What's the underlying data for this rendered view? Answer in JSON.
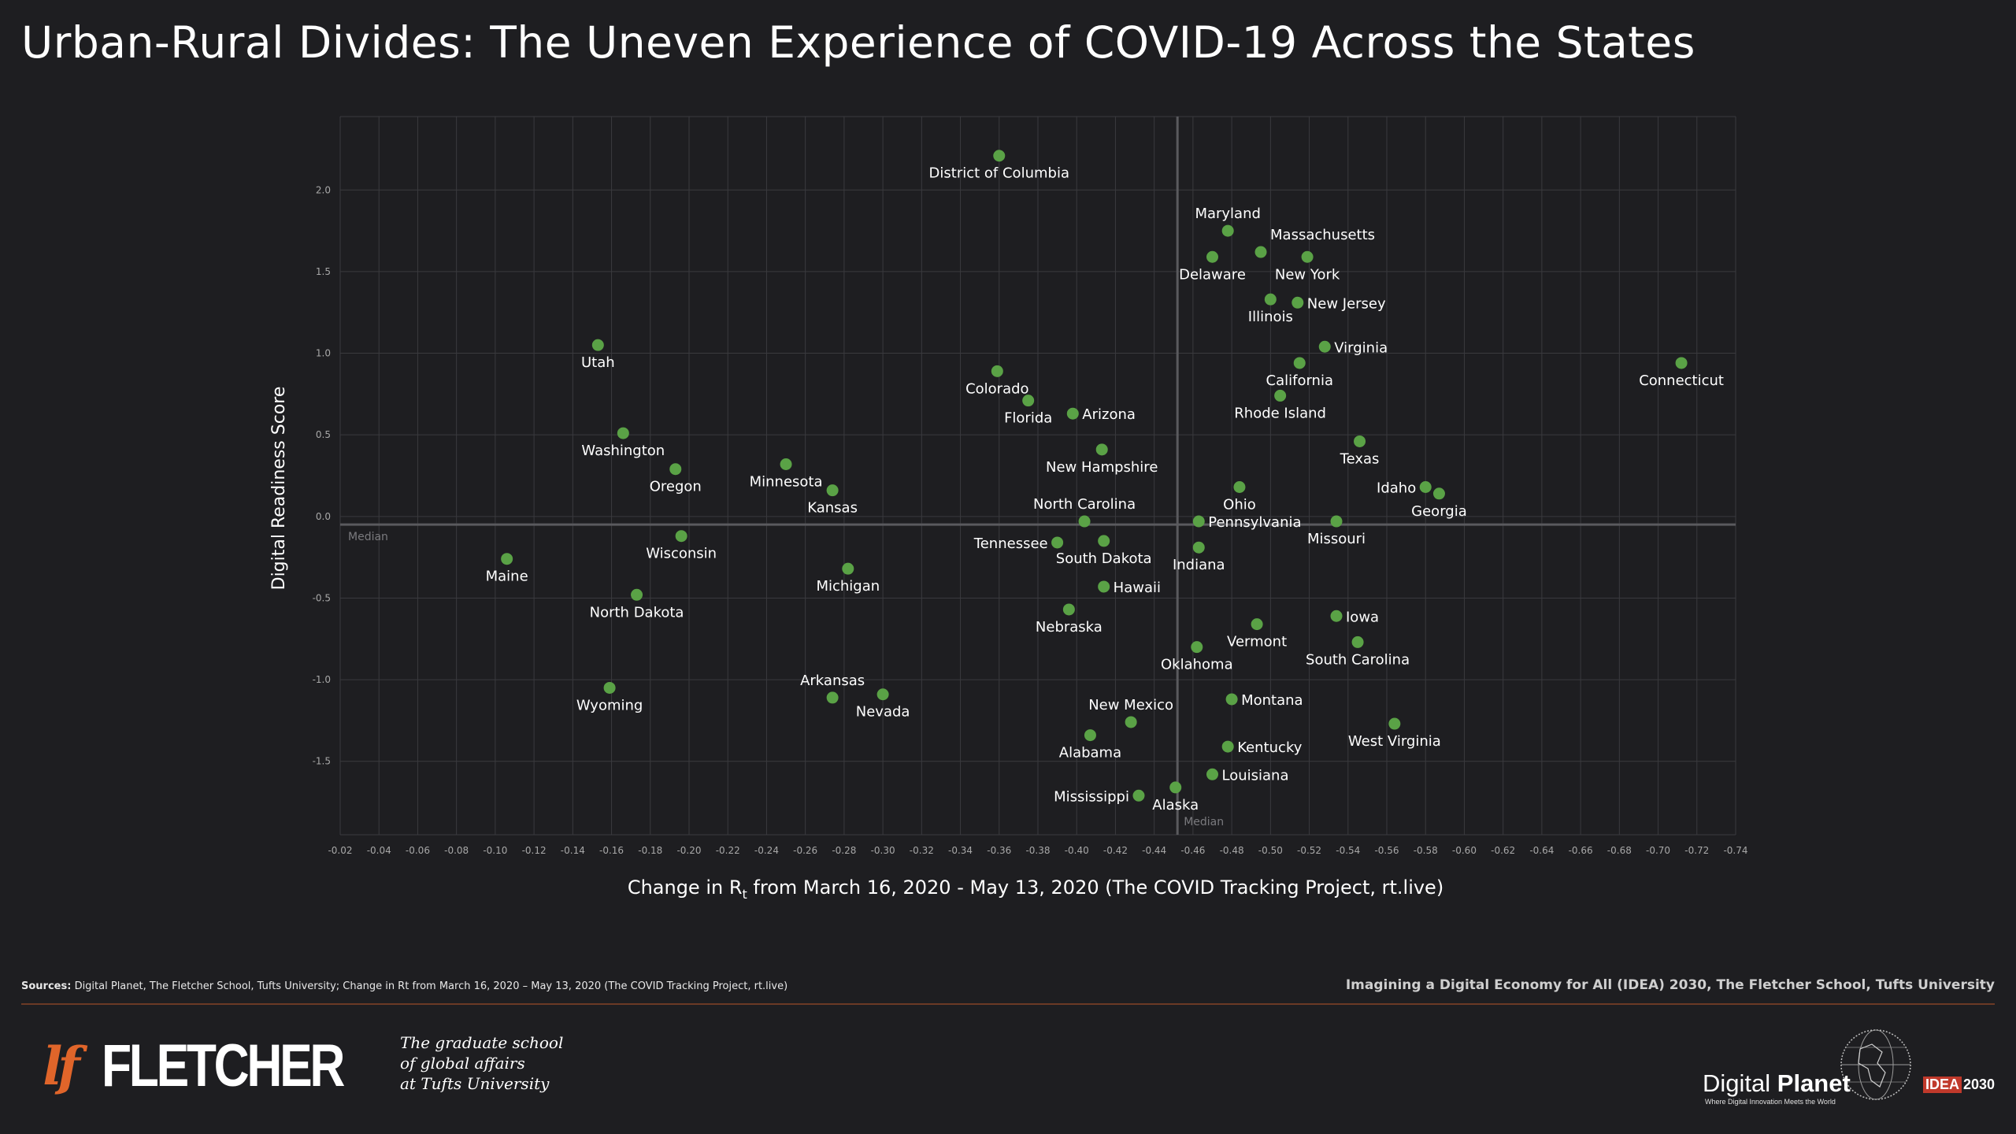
{
  "title": "Urban-Rural Divides: The Uneven Experience of COVID-19 Across the States",
  "footer": {
    "sources_label": "Sources:",
    "sources_text": "Digital Planet, The Fletcher School, Tufts University; Change in Rt from March 16, 2020 –  May 13, 2020 (The COVID Tracking Project, rt.live)",
    "credit": "Imagining a Digital Economy for All (IDEA) 2030, The Fletcher School, Tufts University",
    "fletcher_mark": "lf",
    "fletcher_word": "FLETCHER",
    "tagline": [
      "The graduate school",
      "of global affairs",
      "at Tufts University"
    ],
    "dp_word_regular": "Digital",
    "dp_word_bold": "Planet",
    "dp_subtitle": "Where Digital Innovation Meets the World",
    "idea_badge": "IDEA",
    "idea_year": "2030",
    "icons": [
      "globe-icon"
    ]
  },
  "colors": {
    "background": "#1e1e21",
    "point": "#5aa246",
    "grid": "#3a3a3e",
    "median_line": "#5a5a5e",
    "accent": "#e0652a"
  },
  "chart_data": {
    "type": "scatter",
    "xlabel_main": "Change in R",
    "xlabel_sub": "t",
    "xlabel_rest": " from March 16, 2020 - May 13, 2020 (The COVID Tracking Project, rt.live)",
    "ylabel": "Digital Readiness Score",
    "xlim": [
      -0.02,
      -0.74
    ],
    "ylim": [
      -1.95,
      2.45
    ],
    "x_axis_reversed": true,
    "x_ticks": [
      -0.02,
      -0.04,
      -0.06,
      -0.08,
      -0.1,
      -0.12,
      -0.14,
      -0.16,
      -0.18,
      -0.2,
      -0.22,
      -0.24,
      -0.26,
      -0.28,
      -0.3,
      -0.32,
      -0.34,
      -0.36,
      -0.38,
      -0.4,
      -0.42,
      -0.44,
      -0.46,
      -0.48,
      -0.5,
      -0.52,
      -0.54,
      -0.56,
      -0.58,
      -0.6,
      -0.62,
      -0.64,
      -0.66,
      -0.68,
      -0.7,
      -0.72,
      -0.74
    ],
    "y_ticks": [
      2.0,
      1.5,
      1.0,
      0.5,
      0.0,
      -0.5,
      -1.0,
      -1.5
    ],
    "grid": true,
    "median_x": -0.452,
    "median_y": -0.05,
    "median_label_h": "Median",
    "median_label_v": "Median",
    "points": [
      {
        "name": "District of Columbia",
        "x": -0.36,
        "y": 2.21,
        "pos": "below"
      },
      {
        "name": "Maryland",
        "x": -0.478,
        "y": 1.75,
        "pos": "above"
      },
      {
        "name": "Massachusetts",
        "x": -0.495,
        "y": 1.62,
        "pos": "above-right"
      },
      {
        "name": "Delaware",
        "x": -0.47,
        "y": 1.59,
        "pos": "below"
      },
      {
        "name": "New York",
        "x": -0.519,
        "y": 1.59,
        "pos": "below"
      },
      {
        "name": "Illinois",
        "x": -0.5,
        "y": 1.33,
        "pos": "below"
      },
      {
        "name": "New Jersey",
        "x": -0.514,
        "y": 1.31,
        "pos": "right"
      },
      {
        "name": "Utah",
        "x": -0.153,
        "y": 1.05,
        "pos": "below"
      },
      {
        "name": "Virginia",
        "x": -0.528,
        "y": 1.04,
        "pos": "right"
      },
      {
        "name": "California",
        "x": -0.515,
        "y": 0.94,
        "pos": "below"
      },
      {
        "name": "Connecticut",
        "x": -0.712,
        "y": 0.94,
        "pos": "below"
      },
      {
        "name": "Colorado",
        "x": -0.359,
        "y": 0.89,
        "pos": "below"
      },
      {
        "name": "Florida",
        "x": -0.375,
        "y": 0.71,
        "pos": "below"
      },
      {
        "name": "Rhode Island",
        "x": -0.505,
        "y": 0.74,
        "pos": "below"
      },
      {
        "name": "Arizona",
        "x": -0.398,
        "y": 0.63,
        "pos": "right"
      },
      {
        "name": "Washington",
        "x": -0.166,
        "y": 0.51,
        "pos": "below"
      },
      {
        "name": "Texas",
        "x": -0.546,
        "y": 0.46,
        "pos": "below"
      },
      {
        "name": "New Hampshire",
        "x": -0.413,
        "y": 0.41,
        "pos": "below"
      },
      {
        "name": "Minnesota",
        "x": -0.25,
        "y": 0.32,
        "pos": "below"
      },
      {
        "name": "Oregon",
        "x": -0.193,
        "y": 0.29,
        "pos": "below"
      },
      {
        "name": "Ohio",
        "x": -0.484,
        "y": 0.18,
        "pos": "below"
      },
      {
        "name": "Idaho",
        "x": -0.58,
        "y": 0.18,
        "pos": "left"
      },
      {
        "name": "Kansas",
        "x": -0.274,
        "y": 0.16,
        "pos": "below"
      },
      {
        "name": "Georgia",
        "x": -0.587,
        "y": 0.14,
        "pos": "below"
      },
      {
        "name": "North Carolina",
        "x": -0.404,
        "y": -0.03,
        "pos": "above"
      },
      {
        "name": "Pennsylvania",
        "x": -0.463,
        "y": -0.03,
        "pos": "right"
      },
      {
        "name": "Missouri",
        "x": -0.534,
        "y": -0.03,
        "pos": "below"
      },
      {
        "name": "Wisconsin",
        "x": -0.196,
        "y": -0.12,
        "pos": "below"
      },
      {
        "name": "Tennessee",
        "x": -0.39,
        "y": -0.16,
        "pos": "left"
      },
      {
        "name": "South Dakota",
        "x": -0.414,
        "y": -0.15,
        "pos": "below"
      },
      {
        "name": "Indiana",
        "x": -0.463,
        "y": -0.19,
        "pos": "below"
      },
      {
        "name": "Maine",
        "x": -0.106,
        "y": -0.26,
        "pos": "below"
      },
      {
        "name": "Michigan",
        "x": -0.282,
        "y": -0.32,
        "pos": "below"
      },
      {
        "name": "Hawaii",
        "x": -0.414,
        "y": -0.43,
        "pos": "right"
      },
      {
        "name": "North Dakota",
        "x": -0.173,
        "y": -0.48,
        "pos": "below"
      },
      {
        "name": "Nebraska",
        "x": -0.396,
        "y": -0.57,
        "pos": "below"
      },
      {
        "name": "Iowa",
        "x": -0.534,
        "y": -0.61,
        "pos": "right"
      },
      {
        "name": "Vermont",
        "x": -0.493,
        "y": -0.66,
        "pos": "below"
      },
      {
        "name": "South Carolina",
        "x": -0.545,
        "y": -0.77,
        "pos": "below"
      },
      {
        "name": "Oklahoma",
        "x": -0.462,
        "y": -0.8,
        "pos": "below"
      },
      {
        "name": "Wyoming",
        "x": -0.159,
        "y": -1.05,
        "pos": "below"
      },
      {
        "name": "Arkansas",
        "x": -0.274,
        "y": -1.11,
        "pos": "above"
      },
      {
        "name": "Nevada",
        "x": -0.3,
        "y": -1.09,
        "pos": "below"
      },
      {
        "name": "Montana",
        "x": -0.48,
        "y": -1.12,
        "pos": "right"
      },
      {
        "name": "New Mexico",
        "x": -0.428,
        "y": -1.26,
        "pos": "above"
      },
      {
        "name": "West Virginia",
        "x": -0.564,
        "y": -1.27,
        "pos": "below"
      },
      {
        "name": "Alabama",
        "x": -0.407,
        "y": -1.34,
        "pos": "below"
      },
      {
        "name": "Kentucky",
        "x": -0.478,
        "y": -1.41,
        "pos": "right"
      },
      {
        "name": "Louisiana",
        "x": -0.47,
        "y": -1.58,
        "pos": "right"
      },
      {
        "name": "Alaska",
        "x": -0.451,
        "y": -1.66,
        "pos": "below"
      },
      {
        "name": "Mississippi",
        "x": -0.432,
        "y": -1.71,
        "pos": "left"
      }
    ]
  }
}
